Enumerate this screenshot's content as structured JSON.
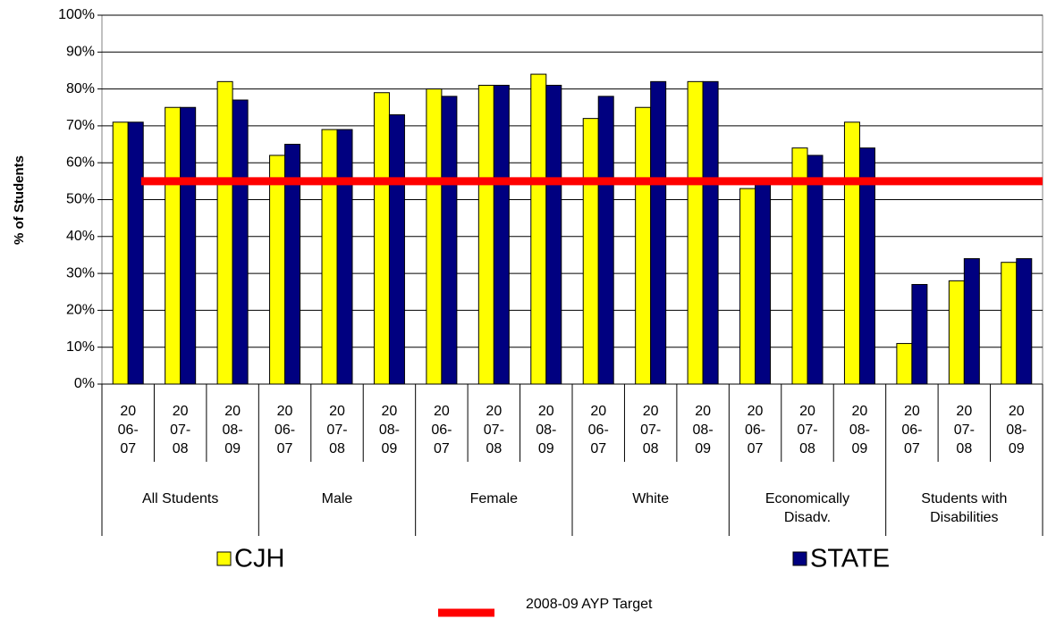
{
  "chart_data": {
    "type": "bar",
    "y_label": "% of Students",
    "groups": [
      "All Students",
      "Male",
      "Female",
      "White",
      "Economically Disadv.",
      "Students with Disabilities"
    ],
    "categories": [
      "2006-07",
      "2007-08",
      "2008-09",
      "2006-07",
      "2007-08",
      "2008-09",
      "2006-07",
      "2007-08",
      "2008-09",
      "2006-07",
      "2007-08",
      "2008-09",
      "2006-07",
      "2007-08",
      "2008-09",
      "2006-07",
      "2007-08",
      "2008-09"
    ],
    "series": [
      {
        "name": "CJH",
        "color": "#ffff00",
        "values": [
          71,
          75,
          82,
          62,
          69,
          79,
          80,
          81,
          84,
          72,
          75,
          82,
          53,
          64,
          71,
          11,
          28,
          33
        ]
      },
      {
        "name": "STATE",
        "color": "#000080",
        "values": [
          71,
          75,
          77,
          65,
          69,
          73,
          78,
          81,
          81,
          78,
          82,
          82,
          55,
          62,
          64,
          27,
          34,
          34
        ]
      }
    ],
    "target": {
      "name": "2008-09 AYP Target",
      "value": 55,
      "color": "#ff0000"
    },
    "ylim": [
      0,
      100
    ],
    "yticks": [
      {
        "value": 0,
        "label": "0%"
      },
      {
        "value": 10,
        "label": "10%"
      },
      {
        "value": 20,
        "label": "20%"
      },
      {
        "value": 30,
        "label": "30%"
      },
      {
        "value": 40,
        "label": "40%"
      },
      {
        "value": 50,
        "label": "50%"
      },
      {
        "value": 60,
        "label": "60%"
      },
      {
        "value": 70,
        "label": "70%"
      },
      {
        "value": 80,
        "label": "80%"
      },
      {
        "value": 90,
        "label": "90%"
      },
      {
        "value": 100,
        "label": "100%"
      }
    ],
    "grid": true
  }
}
